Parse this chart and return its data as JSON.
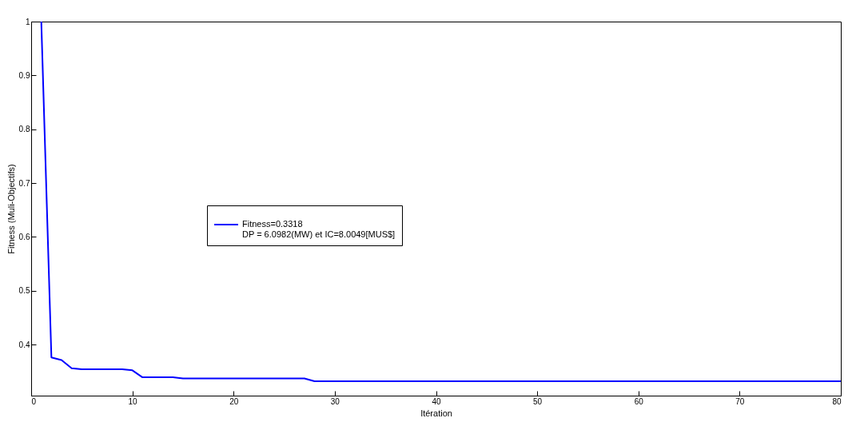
{
  "chart_data": {
    "type": "line",
    "xlabel": "Itération",
    "ylabel": "Fitness (Muli-Objectifs)",
    "x": [
      1,
      2,
      3,
      4,
      5,
      6,
      7,
      8,
      9,
      10,
      11,
      12,
      13,
      14,
      15,
      16,
      17,
      18,
      19,
      20,
      21,
      22,
      23,
      24,
      25,
      26,
      27,
      28,
      29,
      30,
      31,
      32,
      33,
      34,
      35,
      36,
      37,
      38,
      39,
      40,
      41,
      42,
      43,
      44,
      45,
      46,
      47,
      48,
      49,
      50,
      51,
      52,
      53,
      54,
      55,
      56,
      57,
      58,
      59,
      60,
      61,
      62,
      63,
      64,
      65,
      66,
      67,
      68,
      69,
      70,
      71,
      72,
      73,
      74,
      75,
      76,
      77,
      78,
      79,
      80
    ],
    "series": [
      {
        "name": "Fitness=0.3318\nDP = 6.0982(MW) et IC=8.0049[MUS$]",
        "color": "#0000ff",
        "values": [
          1.0,
          0.376,
          0.371,
          0.356,
          0.354,
          0.354,
          0.354,
          0.354,
          0.354,
          0.352,
          0.339,
          0.339,
          0.339,
          0.339,
          0.337,
          0.337,
          0.337,
          0.337,
          0.337,
          0.337,
          0.337,
          0.337,
          0.337,
          0.337,
          0.337,
          0.337,
          0.337,
          0.3318,
          0.3318,
          0.3318,
          0.3318,
          0.3318,
          0.3318,
          0.3318,
          0.3318,
          0.3318,
          0.3318,
          0.3318,
          0.3318,
          0.3318,
          0.3318,
          0.3318,
          0.3318,
          0.3318,
          0.3318,
          0.3318,
          0.3318,
          0.3318,
          0.3318,
          0.3318,
          0.3318,
          0.3318,
          0.3318,
          0.3318,
          0.3318,
          0.3318,
          0.3318,
          0.3318,
          0.3318,
          0.3318,
          0.3318,
          0.3318,
          0.3318,
          0.3318,
          0.3318,
          0.3318,
          0.3318,
          0.3318,
          0.3318,
          0.3318,
          0.3318,
          0.3318,
          0.3318,
          0.3318,
          0.3318,
          0.3318,
          0.3318,
          0.3318,
          0.3318,
          0.3318
        ]
      }
    ],
    "xlim": [
      0,
      80
    ],
    "xticks": [
      0,
      10,
      20,
      30,
      40,
      50,
      60,
      70,
      80
    ],
    "ylim": [
      0.305,
      1
    ],
    "yticks": [
      0.4,
      0.5,
      0.6,
      0.7,
      0.8,
      0.9,
      1
    ],
    "grid": false,
    "legend": "center left",
    "marker": "none",
    "line_style": "solid"
  }
}
